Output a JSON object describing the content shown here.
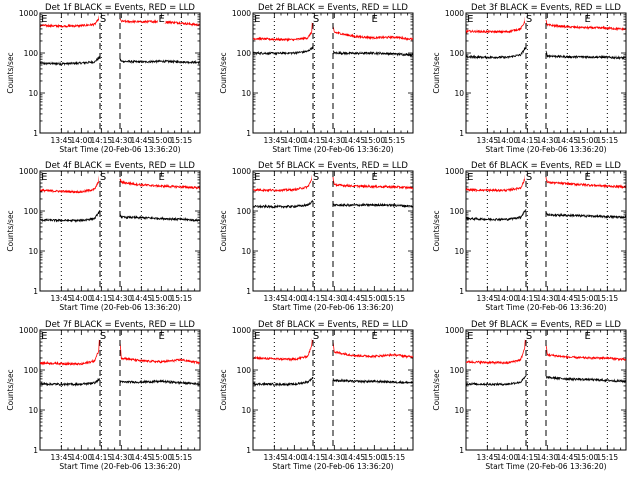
{
  "figure": {
    "background": "#ffffff"
  },
  "chart_data": [
    {
      "type": "line",
      "title": "Det 1f BLACK = Events, RED = LLD",
      "xlabel": "Start Time (20-Feb-06 13:36:20)",
      "ylabel": "Counts/sec",
      "x_ticks": [
        "13:45",
        "14:00",
        "14:15",
        "14:30",
        "14:45",
        "15:00",
        "15:15"
      ],
      "y_ticks": [
        "1",
        "10",
        "100",
        "1000"
      ],
      "xlim_minutes": [
        -16,
        104
      ],
      "ylim": [
        1,
        1000
      ],
      "yscale": "log",
      "markers": [
        {
          "label": "E",
          "x_minutes": -15
        },
        {
          "label": "S",
          "x_minutes": 29
        },
        {
          "label": "E",
          "x_minutes": 73
        }
      ],
      "vlines_dotted_minutes": [
        0,
        30,
        60,
        90
      ],
      "vlines_dashed_minutes": [
        29,
        44
      ],
      "series": [
        {
          "name": "Events",
          "color": "#000000",
          "x_minutes": [
            -16,
            0,
            15,
            25,
            29,
            44,
            45,
            60,
            75,
            90,
            104
          ],
          "values": [
            55,
            54,
            56,
            60,
            80,
            70,
            62,
            60,
            62,
            60,
            58
          ]
        },
        {
          "name": "LLD",
          "color": "#ff0000",
          "x_minutes": [
            -16,
            0,
            15,
            25,
            28,
            29,
            44,
            45,
            60,
            75,
            90,
            104
          ],
          "values": [
            490,
            470,
            480,
            520,
            700,
            1000,
            700,
            620,
            600,
            620,
            560,
            500
          ]
        }
      ]
    },
    {
      "type": "line",
      "title": "Det 2f BLACK = Events, RED = LLD",
      "xlabel": "Start Time (20-Feb-06 13:36:20)",
      "ylabel": "Counts/sec",
      "x_ticks": [
        "13:45",
        "14:00",
        "14:15",
        "14:30",
        "14:45",
        "15:00",
        "15:15"
      ],
      "y_ticks": [
        "1",
        "10",
        "100",
        "1000"
      ],
      "xlim_minutes": [
        -16,
        104
      ],
      "ylim": [
        1,
        1000
      ],
      "yscale": "log",
      "markers": [
        {
          "label": "E",
          "x_minutes": -15
        },
        {
          "label": "S",
          "x_minutes": 29
        },
        {
          "label": "E",
          "x_minutes": 73
        }
      ],
      "vlines_dotted_minutes": [
        0,
        30,
        60,
        90
      ],
      "vlines_dashed_minutes": [
        29,
        44
      ],
      "series": [
        {
          "name": "Events",
          "color": "#000000",
          "x_minutes": [
            -16,
            0,
            15,
            25,
            29,
            44,
            45,
            60,
            75,
            90,
            104
          ],
          "values": [
            100,
            98,
            100,
            110,
            140,
            110,
            100,
            98,
            100,
            95,
            90
          ]
        },
        {
          "name": "LLD",
          "color": "#ff0000",
          "x_minutes": [
            -16,
            0,
            15,
            25,
            28,
            29,
            44,
            45,
            60,
            75,
            90,
            104
          ],
          "values": [
            230,
            220,
            215,
            240,
            330,
            1000,
            450,
            330,
            260,
            240,
            250,
            220
          ]
        }
      ]
    },
    {
      "type": "line",
      "title": "Det 3f BLACK = Events, RED = LLD",
      "xlabel": "Start Time (20-Feb-06 13:36:20)",
      "ylabel": "Counts/sec",
      "x_ticks": [
        "13:45",
        "14:00",
        "14:15",
        "14:30",
        "14:45",
        "15:00",
        "15:15"
      ],
      "y_ticks": [
        "1",
        "10",
        "100",
        "1000"
      ],
      "xlim_minutes": [
        -16,
        104
      ],
      "ylim": [
        1,
        1000
      ],
      "yscale": "log",
      "markers": [
        {
          "label": "E",
          "x_minutes": -15
        },
        {
          "label": "S",
          "x_minutes": 29
        },
        {
          "label": "E",
          "x_minutes": 73
        }
      ],
      "vlines_dotted_minutes": [
        0,
        30,
        60,
        90
      ],
      "vlines_dashed_minutes": [
        29,
        44
      ],
      "series": [
        {
          "name": "Events",
          "color": "#000000",
          "x_minutes": [
            -16,
            0,
            15,
            25,
            29,
            44,
            45,
            60,
            75,
            90,
            104
          ],
          "values": [
            80,
            78,
            78,
            90,
            140,
            110,
            85,
            80,
            80,
            78,
            75
          ]
        },
        {
          "name": "LLD",
          "color": "#ff0000",
          "x_minutes": [
            -16,
            0,
            15,
            25,
            28,
            29,
            44,
            45,
            60,
            75,
            90,
            104
          ],
          "values": [
            350,
            340,
            340,
            400,
            600,
            1000,
            650,
            500,
            450,
            430,
            420,
            390
          ]
        }
      ]
    },
    {
      "type": "line",
      "title": "Det 4f BLACK = Events, RED = LLD",
      "xlabel": "Start Time (20-Feb-06 13:36:20)",
      "ylabel": "Counts/sec",
      "x_ticks": [
        "13:45",
        "14:00",
        "14:15",
        "14:30",
        "14:45",
        "15:00",
        "15:15"
      ],
      "y_ticks": [
        "1",
        "10",
        "100",
        "1000"
      ],
      "xlim_minutes": [
        -16,
        104
      ],
      "ylim": [
        1,
        1000
      ],
      "yscale": "log",
      "markers": [
        {
          "label": "E",
          "x_minutes": -15
        },
        {
          "label": "S",
          "x_minutes": 29
        },
        {
          "label": "E",
          "x_minutes": 73
        }
      ],
      "vlines_dotted_minutes": [
        0,
        30,
        60,
        90
      ],
      "vlines_dashed_minutes": [
        29,
        44
      ],
      "series": [
        {
          "name": "Events",
          "color": "#000000",
          "x_minutes": [
            -16,
            0,
            15,
            25,
            29,
            44,
            45,
            60,
            75,
            90,
            104
          ],
          "values": [
            60,
            58,
            58,
            65,
            100,
            90,
            70,
            68,
            65,
            62,
            58
          ]
        },
        {
          "name": "LLD",
          "color": "#ff0000",
          "x_minutes": [
            -16,
            0,
            15,
            25,
            28,
            29,
            44,
            45,
            60,
            75,
            90,
            104
          ],
          "values": [
            330,
            310,
            300,
            350,
            550,
            1000,
            650,
            520,
            450,
            420,
            400,
            380
          ]
        }
      ]
    },
    {
      "type": "line",
      "title": "Det 5f BLACK = Events, RED = LLD",
      "xlabel": "Start Time (20-Feb-06 13:36:20)",
      "ylabel": "Counts/sec",
      "x_ticks": [
        "13:45",
        "14:00",
        "14:15",
        "14:30",
        "14:45",
        "15:00",
        "15:15"
      ],
      "y_ticks": [
        "1",
        "10",
        "100",
        "1000"
      ],
      "xlim_minutes": [
        -16,
        104
      ],
      "ylim": [
        1,
        1000
      ],
      "yscale": "log",
      "markers": [
        {
          "label": "E",
          "x_minutes": -15
        },
        {
          "label": "S",
          "x_minutes": 29
        },
        {
          "label": "E",
          "x_minutes": 73
        }
      ],
      "vlines_dotted_minutes": [
        0,
        30,
        60,
        90
      ],
      "vlines_dashed_minutes": [
        29,
        44
      ],
      "series": [
        {
          "name": "Events",
          "color": "#000000",
          "x_minutes": [
            -16,
            0,
            15,
            25,
            29,
            44,
            45,
            60,
            75,
            90,
            104
          ],
          "values": [
            130,
            128,
            130,
            140,
            180,
            150,
            140,
            140,
            142,
            140,
            130
          ]
        },
        {
          "name": "LLD",
          "color": "#ff0000",
          "x_minutes": [
            -16,
            0,
            15,
            25,
            28,
            29,
            44,
            45,
            60,
            75,
            90,
            104
          ],
          "values": [
            340,
            330,
            340,
            400,
            600,
            1000,
            700,
            450,
            420,
            410,
            400,
            380
          ]
        }
      ]
    },
    {
      "type": "line",
      "title": "Det 6f BLACK = Events, RED = LLD",
      "xlabel": "Start Time (20-Feb-06 13:36:20)",
      "ylabel": "Counts/sec",
      "x_ticks": [
        "13:45",
        "14:00",
        "14:15",
        "14:30",
        "14:45",
        "15:00",
        "15:15"
      ],
      "y_ticks": [
        "1",
        "10",
        "100",
        "1000"
      ],
      "xlim_minutes": [
        -16,
        104
      ],
      "ylim": [
        1,
        1000
      ],
      "yscale": "log",
      "markers": [
        {
          "label": "E",
          "x_minutes": -15
        },
        {
          "label": "S",
          "x_minutes": 29
        },
        {
          "label": "E",
          "x_minutes": 73
        }
      ],
      "vlines_dotted_minutes": [
        0,
        30,
        60,
        90
      ],
      "vlines_dashed_minutes": [
        29,
        44
      ],
      "series": [
        {
          "name": "Events",
          "color": "#000000",
          "x_minutes": [
            -16,
            0,
            15,
            25,
            29,
            44,
            45,
            60,
            75,
            90,
            104
          ],
          "values": [
            65,
            62,
            62,
            70,
            110,
            100,
            80,
            78,
            75,
            72,
            70
          ]
        },
        {
          "name": "LLD",
          "color": "#ff0000",
          "x_minutes": [
            -16,
            0,
            15,
            25,
            28,
            29,
            44,
            45,
            60,
            75,
            90,
            104
          ],
          "values": [
            340,
            330,
            330,
            380,
            600,
            1000,
            700,
            520,
            480,
            450,
            420,
            400
          ]
        }
      ]
    },
    {
      "type": "line",
      "title": "Det 7f BLACK = Events, RED = LLD",
      "xlabel": "Start Time (20-Feb-06 13:36:20)",
      "ylabel": "Counts/sec",
      "x_ticks": [
        "13:45",
        "14:00",
        "14:15",
        "14:30",
        "14:45",
        "15:00",
        "15:15"
      ],
      "y_ticks": [
        "1",
        "10",
        "100",
        "1000"
      ],
      "xlim_minutes": [
        -16,
        104
      ],
      "ylim": [
        1,
        1000
      ],
      "yscale": "log",
      "markers": [
        {
          "label": "E",
          "x_minutes": -15
        },
        {
          "label": "S",
          "x_minutes": 29
        },
        {
          "label": "E",
          "x_minutes": 73
        }
      ],
      "vlines_dotted_minutes": [
        0,
        30,
        60,
        90
      ],
      "vlines_dashed_minutes": [
        29,
        44
      ],
      "series": [
        {
          "name": "Events",
          "color": "#000000",
          "x_minutes": [
            -16,
            0,
            15,
            25,
            29,
            44,
            45,
            60,
            75,
            90,
            104
          ],
          "values": [
            45,
            44,
            44,
            48,
            60,
            55,
            50,
            50,
            52,
            48,
            45
          ]
        },
        {
          "name": "LLD",
          "color": "#ff0000",
          "x_minutes": [
            -16,
            0,
            15,
            25,
            28,
            29,
            44,
            45,
            60,
            75,
            90,
            104
          ],
          "values": [
            150,
            145,
            140,
            170,
            300,
            1000,
            500,
            200,
            170,
            160,
            180,
            150
          ]
        }
      ]
    },
    {
      "type": "line",
      "title": "Det 8f BLACK = Events, RED = LLD",
      "xlabel": "Start Time (20-Feb-06 13:36:20)",
      "ylabel": "Counts/sec",
      "x_ticks": [
        "13:45",
        "14:00",
        "14:15",
        "14:30",
        "14:45",
        "15:00",
        "15:15"
      ],
      "y_ticks": [
        "1",
        "10",
        "100",
        "1000"
      ],
      "xlim_minutes": [
        -16,
        104
      ],
      "ylim": [
        1,
        1000
      ],
      "yscale": "log",
      "markers": [
        {
          "label": "E",
          "x_minutes": -15
        },
        {
          "label": "S",
          "x_minutes": 29
        },
        {
          "label": "E",
          "x_minutes": 73
        }
      ],
      "vlines_dotted_minutes": [
        0,
        30,
        60,
        90
      ],
      "vlines_dashed_minutes": [
        29,
        44
      ],
      "series": [
        {
          "name": "Events",
          "color": "#000000",
          "x_minutes": [
            -16,
            0,
            15,
            25,
            29,
            44,
            45,
            60,
            75,
            90,
            104
          ],
          "values": [
            45,
            44,
            44,
            50,
            65,
            60,
            55,
            52,
            52,
            50,
            48
          ]
        },
        {
          "name": "LLD",
          "color": "#ff0000",
          "x_minutes": [
            -16,
            0,
            15,
            25,
            28,
            29,
            44,
            45,
            60,
            75,
            90,
            104
          ],
          "values": [
            200,
            190,
            185,
            220,
            400,
            1000,
            550,
            280,
            230,
            220,
            240,
            210
          ]
        }
      ]
    },
    {
      "type": "line",
      "title": "Det 9f BLACK = Events, RED = LLD",
      "xlabel": "Start Time (20-Feb-06 13:36:20)",
      "ylabel": "Counts/sec",
      "x_ticks": [
        "13:45",
        "14:00",
        "14:15",
        "14:30",
        "14:45",
        "15:00",
        "15:15"
      ],
      "y_ticks": [
        "1",
        "10",
        "100",
        "1000"
      ],
      "xlim_minutes": [
        -16,
        104
      ],
      "ylim": [
        1,
        1000
      ],
      "yscale": "log",
      "markers": [
        {
          "label": "E",
          "x_minutes": -15
        },
        {
          "label": "S",
          "x_minutes": 29
        },
        {
          "label": "E",
          "x_minutes": 73
        }
      ],
      "vlines_dotted_minutes": [
        0,
        30,
        60,
        90
      ],
      "vlines_dashed_minutes": [
        29,
        44
      ],
      "series": [
        {
          "name": "Events",
          "color": "#000000",
          "x_minutes": [
            -16,
            0,
            15,
            25,
            29,
            44,
            45,
            60,
            75,
            90,
            104
          ],
          "values": [
            45,
            44,
            44,
            50,
            70,
            70,
            65,
            60,
            58,
            55,
            52
          ]
        },
        {
          "name": "LLD",
          "color": "#ff0000",
          "x_minutes": [
            -16,
            0,
            15,
            25,
            28,
            29,
            44,
            45,
            60,
            75,
            90,
            104
          ],
          "values": [
            160,
            155,
            150,
            180,
            350,
            1000,
            450,
            240,
            210,
            200,
            200,
            180
          ]
        }
      ]
    }
  ]
}
